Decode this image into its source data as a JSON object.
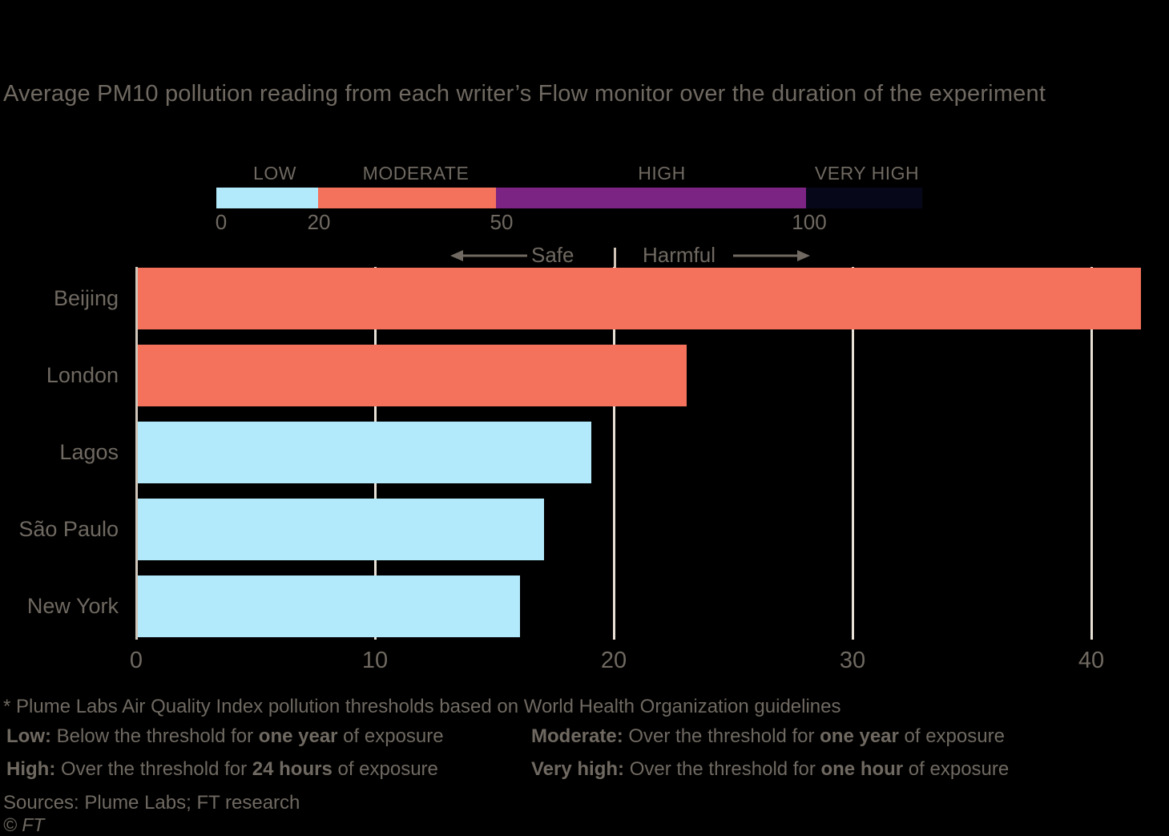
{
  "title": "Average PM10 pollution reading from each writer’s Flow monitor over the duration of the experiment",
  "threshold_legend": {
    "segments": [
      {
        "label": "LOW",
        "color": "#B2EAFB",
        "range": "0-20"
      },
      {
        "label": "MODERATE",
        "color": "#F4725C",
        "range": "20-50"
      },
      {
        "label": "HIGH",
        "color": "#7C2483",
        "range": "50-100"
      },
      {
        "label": "VERY HIGH",
        "color": "#07071A",
        "range": "100+"
      }
    ],
    "ticks": [
      "0",
      "20",
      "50",
      "100"
    ]
  },
  "annotations": {
    "safe": "Safe",
    "harmful": "Harmful",
    "threshold_value": 20
  },
  "chart_data": {
    "type": "bar",
    "orientation": "horizontal",
    "title": "Average PM10 pollution reading from each writer’s Flow monitor over the duration of the experiment",
    "categories": [
      "Beijing",
      "London",
      "Lagos",
      "São Paulo",
      "New York"
    ],
    "values": [
      42,
      23,
      19,
      17,
      16
    ],
    "bar_colors": [
      "#F4725C",
      "#F4725C",
      "#B2EAFB",
      "#B2EAFB",
      "#B2EAFB"
    ],
    "x_ticks": [
      0,
      10,
      20,
      30,
      40
    ],
    "xlim": [
      0,
      43.3
    ],
    "xlabel": "",
    "ylabel": "",
    "grid": true,
    "legend_position": "top"
  },
  "footnotes": {
    "asterisk": "* Plume Labs Air Quality Index pollution thresholds based on World Health Organization guidelines",
    "definitions": {
      "low": {
        "term": "Low:",
        "pre": " Below the threshold for ",
        "bold": "one year",
        "post": " of exposure"
      },
      "moderate": {
        "term": "Moderate:",
        "pre": " Over the threshold for ",
        "bold": "one year",
        "post": " of exposure"
      },
      "high": {
        "term": "High:",
        "pre": " Over the threshold for ",
        "bold": "24 hours",
        "post": " of exposure"
      },
      "very_high": {
        "term": "Very high:",
        "pre": " Over the threshold for ",
        "bold": "one hour",
        "post": " of exposure"
      }
    },
    "sources": "Sources: Plume Labs; FT research",
    "copyright": "© FT"
  },
  "colors": {
    "background": "#000000",
    "text": "#6F6961",
    "axis": "#CFC5B8",
    "gridline": "#E8E0D5",
    "divider": "#CEC2B5",
    "low": "#B2EAFB",
    "moderate": "#F4725C",
    "high": "#7C2483",
    "very_high": "#07071A"
  }
}
